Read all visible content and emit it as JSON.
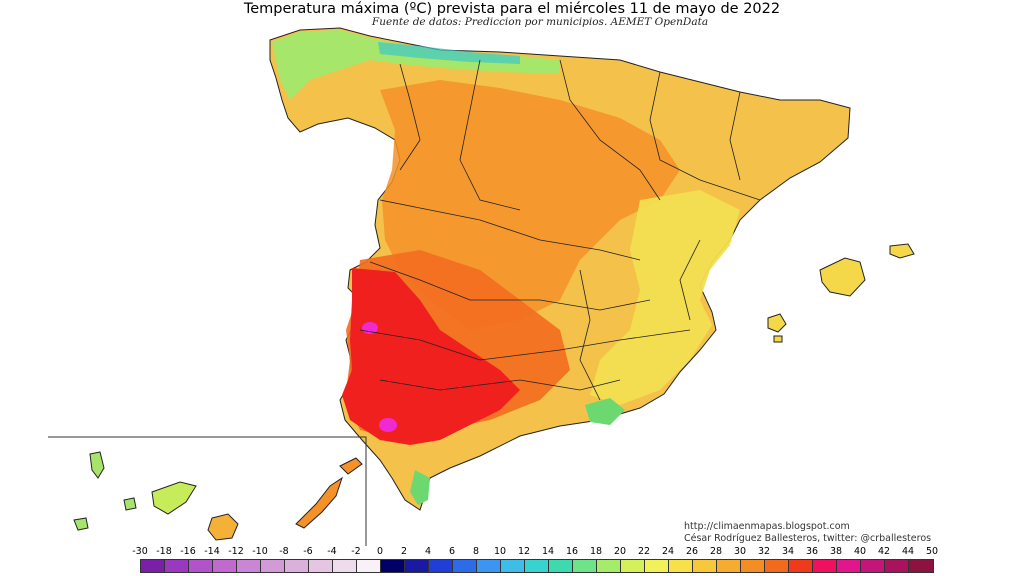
{
  "map": {
    "title": "Temperatura máxima (ºC) prevista para el miércoles 11 de mayo de 2022",
    "subtitle": "Fuente de datos: Prediccion por municipios. AEMET OpenData",
    "credits": {
      "url": "http://climaenmapas.blogspot.com",
      "author": "César Rodríguez Ballesteros, twitter: @crballesteros"
    },
    "legend": {
      "labels": [
        "-30",
        "-18",
        "-16",
        "-14",
        "-12",
        "-10",
        "-8",
        "-6",
        "-4",
        "-2",
        "0",
        "2",
        "4",
        "6",
        "8",
        "10",
        "12",
        "14",
        "16",
        "18",
        "20",
        "22",
        "24",
        "26",
        "28",
        "30",
        "32",
        "34",
        "36",
        "38",
        "40",
        "42",
        "44",
        "50"
      ],
      "colors": [
        "#7a1fa8",
        "#9a38c0",
        "#b254c9",
        "#c06ad0",
        "#c985d6",
        "#d29bd8",
        "#dbb0dc",
        "#e4c6e2",
        "#eedcec",
        "#f8f2f8",
        "#000066",
        "#1a1aa0",
        "#1f3fd8",
        "#2d6be8",
        "#3d95f2",
        "#3fbde9",
        "#38d3d0",
        "#3ddab0",
        "#6fe38a",
        "#a4ec6a",
        "#d4f05a",
        "#f1f259",
        "#f7e04a",
        "#f7c83c",
        "#f5ac30",
        "#f48e24",
        "#f26a1e",
        "#f03a1c",
        "#f01060",
        "#e2158c",
        "#c4157a",
        "#a8135c",
        "#8c1240"
      ],
      "unit": "ºC"
    },
    "fill_palette": {
      "background": "#ffffff",
      "yellow": "#f4d84a",
      "light_orange": "#f5b038",
      "orange": "#f49128",
      "dark_orange": "#f36d20",
      "red": "#f0201e",
      "magenta": "#f02ad2",
      "green": "#6ed870",
      "lime": "#c7ec5a",
      "cyan": "#3ec8c8",
      "border": "#222222"
    }
  }
}
